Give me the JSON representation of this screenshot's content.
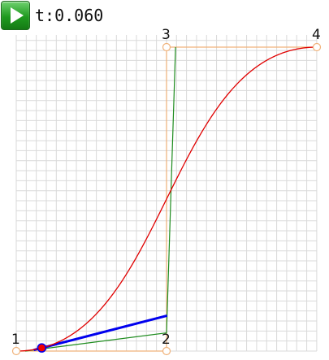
{
  "controls": {
    "play_icon": "play-icon",
    "t_label": "t:",
    "t_value": "0.060"
  },
  "bezier": {
    "t": 0.06,
    "points": [
      {
        "label": "1",
        "x": 0,
        "y": 0
      },
      {
        "label": "2",
        "x": 0.5,
        "y": 0
      },
      {
        "label": "3",
        "x": 0.5,
        "y": 1
      },
      {
        "label": "4",
        "x": 1,
        "y": 1
      }
    ]
  },
  "colors": {
    "curve": "#e00000",
    "control_polygon": "#f0b27a",
    "first_level": "#1e8c1e",
    "second_level": "#0000ee",
    "current_point": "#ee0000",
    "grid": "#d9d9d9",
    "play_button": "#23a023"
  }
}
